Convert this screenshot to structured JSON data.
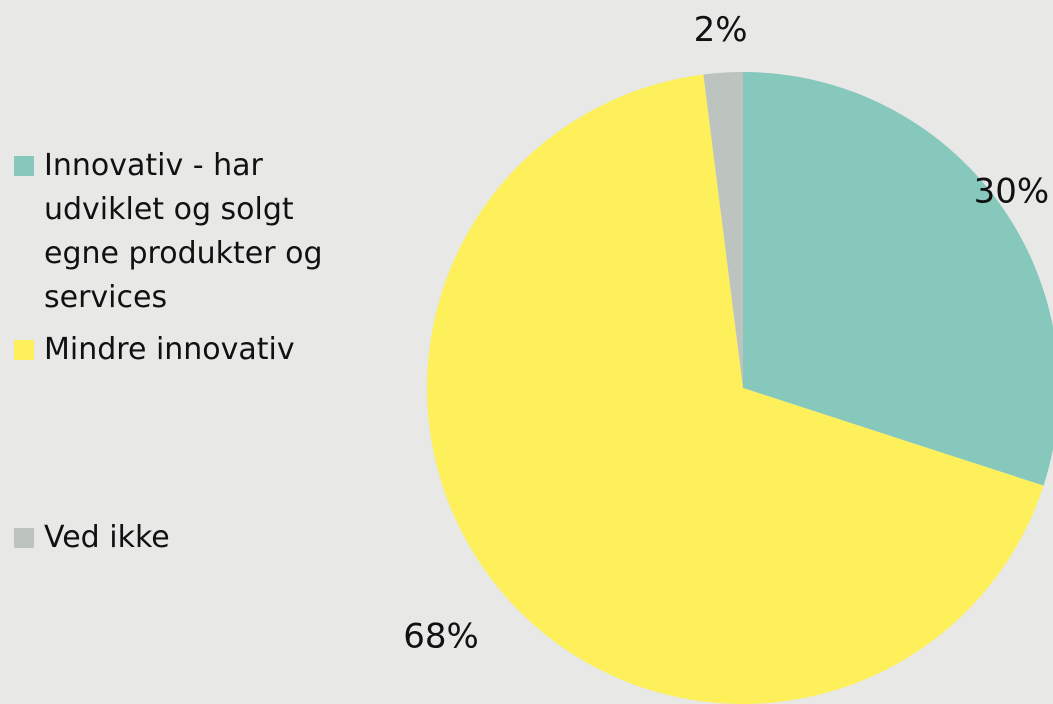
{
  "chart_data": {
    "type": "pie",
    "categories": [
      "Innovativ - har udviklet og solgt egne produkter og services",
      "Mindre innovativ",
      "Ved ikke"
    ],
    "values": [
      30,
      68,
      2
    ],
    "value_labels": [
      "30%",
      "68%",
      "2%"
    ],
    "colors": [
      "#86c8bc",
      "#fdf05a",
      "#bdc4bf"
    ],
    "legend": "left"
  }
}
